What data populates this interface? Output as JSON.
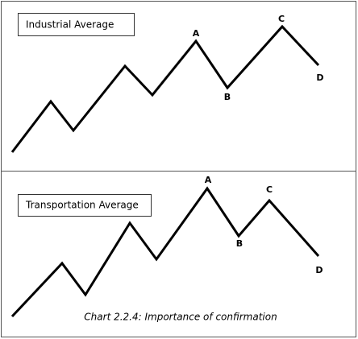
{
  "panels": [
    {
      "title": "Industrial Average",
      "labels": [
        "A",
        "B",
        "C",
        "D"
      ]
    },
    {
      "title": "Transportation Average",
      "labels": [
        "A",
        "B",
        "C",
        "D"
      ]
    }
  ],
  "caption": "Chart 2.2.4: Importance of confirmation"
}
